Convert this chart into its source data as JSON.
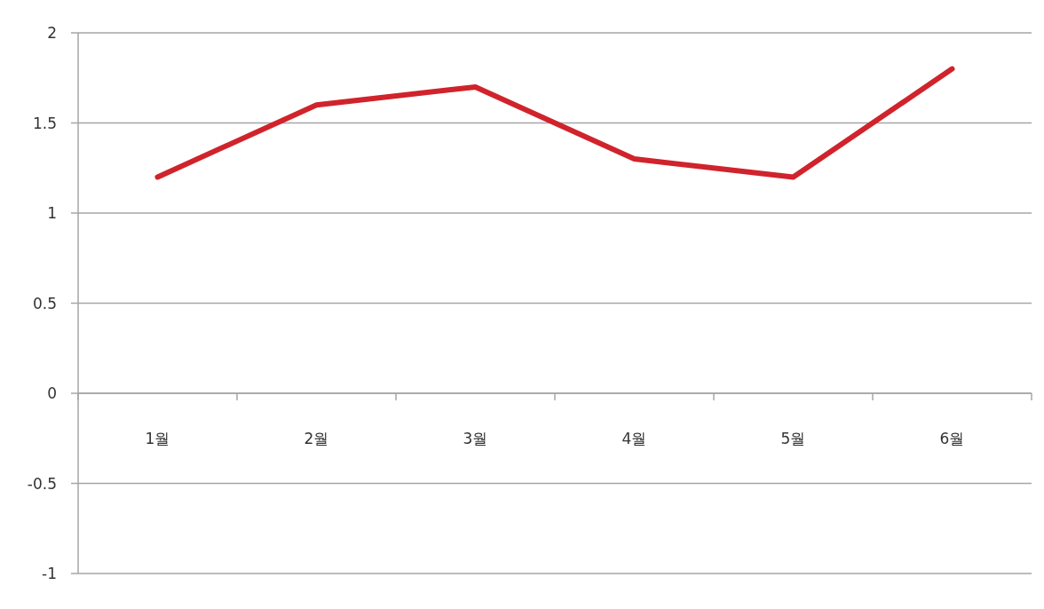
{
  "chart_data": {
    "type": "line",
    "categories": [
      "1월",
      "2월",
      "3월",
      "4월",
      "5월",
      "6월"
    ],
    "values": [
      1.2,
      1.6,
      1.7,
      1.3,
      1.2,
      1.8
    ],
    "color": "#d0232b",
    "ylim": [
      -1,
      2
    ],
    "yticks": [
      -1,
      -0.5,
      0,
      0.5,
      1,
      1.5,
      2
    ],
    "grid": "y",
    "marker": "none"
  }
}
